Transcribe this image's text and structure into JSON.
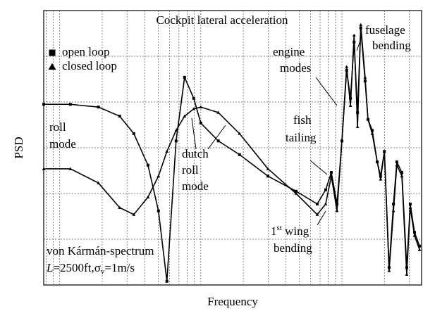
{
  "chart_data": {
    "type": "line",
    "title": "Cockpit lateral acceleration",
    "xlabel": "Frequency",
    "ylabel": "PSD",
    "xscale": "log",
    "grid": true,
    "legend": "upper left",
    "xlim": [
      0.077,
      36.7
    ],
    "ylim": [
      0,
      6
    ],
    "xticks": [
      0.08,
      0.09,
      0.1,
      0.2,
      0.3,
      0.4,
      0.5,
      0.6,
      0.7,
      0.8,
      0.9,
      1,
      2,
      3,
      4,
      5,
      6,
      7,
      8,
      9,
      10,
      20,
      30
    ],
    "yticks": [
      1,
      2,
      3,
      4,
      5
    ],
    "x": [
      0.077,
      0.119,
      0.188,
      0.266,
      0.335,
      0.422,
      0.501,
      0.575,
      0.668,
      0.767,
      0.891,
      1,
      1.33,
      1.88,
      2.99,
      4.73,
      6.68,
      7.67,
      8.41,
      9.23,
      10,
      10.8,
      11.5,
      12.2,
      12.9,
      13.6,
      14.6,
      15.3,
      16.4,
      17.8,
      18.8,
      20,
      21.6,
      23.2,
      24.5,
      26.6,
      28.8,
      30.5,
      32.7,
      35.5
    ],
    "series": [
      {
        "name": "open loop",
        "color": "#000000",
        "marker": "square",
        "values": [
          3.95,
          3.95,
          3.89,
          3.69,
          3.31,
          2.62,
          1.62,
          0.08,
          3.15,
          4.54,
          4.08,
          3.54,
          3.15,
          2.85,
          2.38,
          2.05,
          1.77,
          2.08,
          2.46,
          1.77,
          3.15,
          4.69,
          4.08,
          5.31,
          3.77,
          5.62,
          4.46,
          3.62,
          3.38,
          2.69,
          2.38,
          2.92,
          0.38,
          1.77,
          2.69,
          2.46,
          0.38,
          1.77,
          1.15,
          0.85
        ]
      },
      {
        "name": "closed loop",
        "color": "#000000",
        "marker": "triangle",
        "values": [
          2.54,
          2.54,
          2.23,
          1.69,
          1.54,
          1.92,
          2.38,
          2.92,
          3.38,
          3.69,
          3.85,
          3.89,
          3.77,
          3.31,
          2.54,
          2.0,
          1.54,
          1.77,
          2.38,
          1.62,
          3.15,
          4.77,
          3.92,
          5.46,
          3.46,
          5.69,
          4.54,
          3.62,
          3.31,
          2.69,
          2.31,
          2.92,
          0.31,
          1.62,
          2.62,
          2.38,
          0.23,
          1.69,
          1.08,
          0.77
        ]
      }
    ],
    "annotations": {
      "roll_mode": [
        "roll",
        "mode"
      ],
      "dutch_roll_mode": [
        "dutch",
        "roll",
        "mode"
      ],
      "fish_tailing": [
        "fish",
        "tailing"
      ],
      "engine_modes": [
        "engine",
        "modes"
      ],
      "fuselage_bending": [
        "fuselage",
        "bending"
      ],
      "wing_bending": {
        "ordinal": "1",
        "suffix": "st",
        "rest": " wing",
        "line2": "bending"
      },
      "spectrum": {
        "line1": "von Kármán-spectrum",
        "symbol": "L",
        "part1": "=2500ft,σ",
        "sub": "v",
        "part2": "=1m/s"
      }
    }
  }
}
